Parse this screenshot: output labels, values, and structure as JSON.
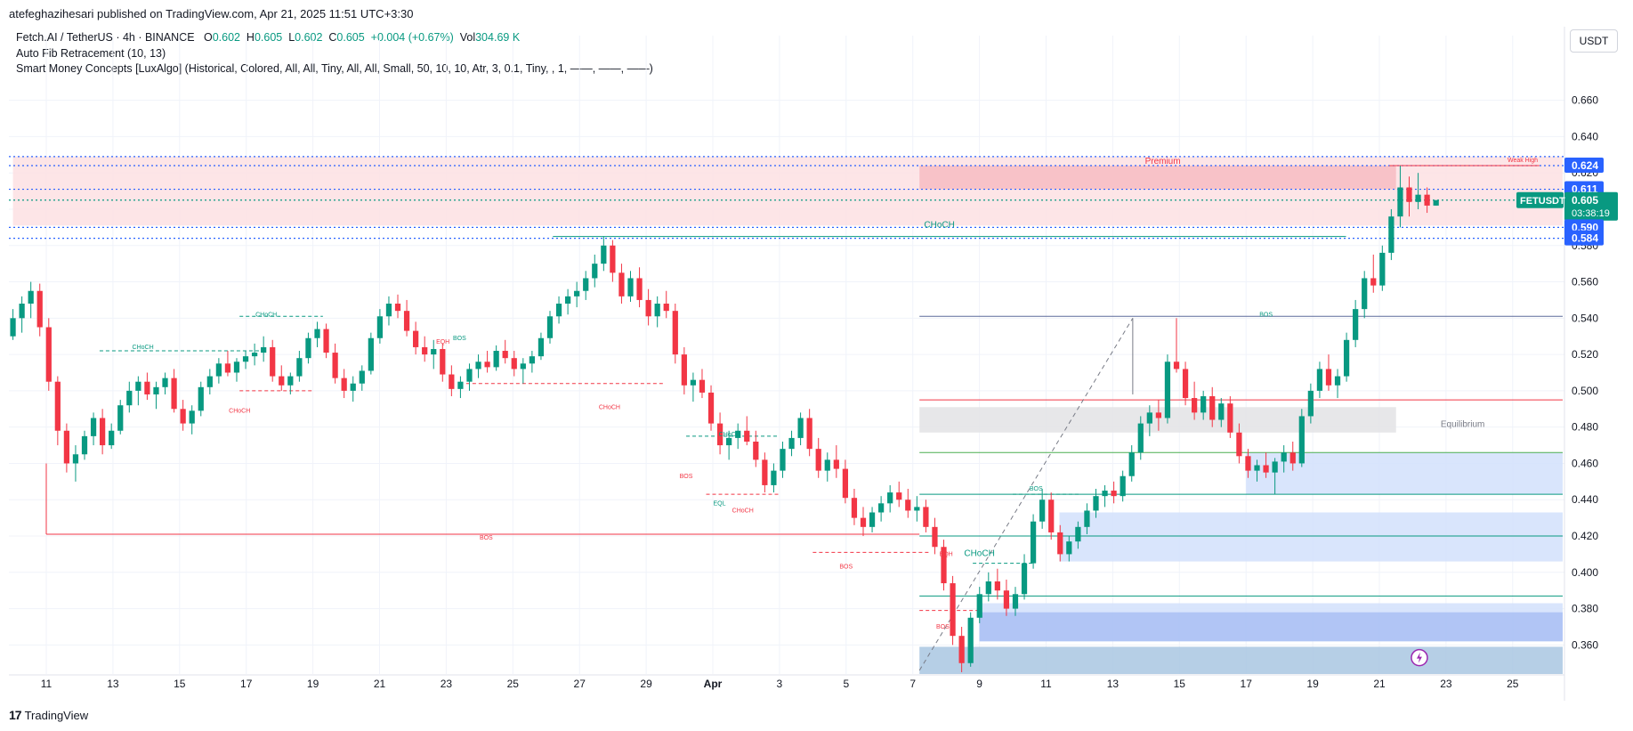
{
  "header": {
    "publisher_line": "atefeghazihesari published on TradingView.com, Apr 21, 2025 11:51 UTC+3:30"
  },
  "legend": {
    "symbol_line": "Fetch.AI / TetherUS · 4h · BINANCE",
    "o_label": "O",
    "o_value": "0.602",
    "h_label": "H",
    "h_value": "0.605",
    "l_label": "L",
    "l_value": "0.602",
    "c_label": "C",
    "c_value": "0.605",
    "change": "+0.004 (+0.67%)",
    "vol_label": "Vol",
    "vol_value": "304.69 K",
    "indicator1": "Auto Fib Retracement (10, 13)",
    "indicator2": "Smart Money Concepts [LuxAlgo] (Historical, Colored, All, All, Tiny, All, All, Small, 50, 10, 10, Atr, 3, 0.1, Tiny, , 1, ——, ——, ——)"
  },
  "currency_button": "USDT",
  "footer": {
    "brand": "TradingView",
    "logo": "17"
  },
  "colors": {
    "up": "#089981",
    "down": "#f23645",
    "blue": "#2962ff",
    "zone_red": "#f7c7cb",
    "zone_blue": "#c5d5f8"
  },
  "chart_data": {
    "type": "candlestick",
    "title": "Fetch.AI / TetherUS · 4h · BINANCE",
    "ylim": [
      0.344,
      0.676
    ],
    "y_ticks": [
      "0.660",
      "0.640",
      "0.620",
      "0.600",
      "0.580",
      "0.560",
      "0.540",
      "0.520",
      "0.500",
      "0.480",
      "0.460",
      "0.440",
      "0.420",
      "0.400",
      "0.380",
      "0.360"
    ],
    "x_range_days": [
      10.0,
      55.0
    ],
    "x_ticks": [
      {
        "day": 11,
        "label": "11"
      },
      {
        "day": 13,
        "label": "13"
      },
      {
        "day": 15,
        "label": "15"
      },
      {
        "day": 17,
        "label": "17"
      },
      {
        "day": 19,
        "label": "19"
      },
      {
        "day": 21,
        "label": "21"
      },
      {
        "day": 23,
        "label": "23"
      },
      {
        "day": 25,
        "label": "25"
      },
      {
        "day": 27,
        "label": "27"
      },
      {
        "day": 29,
        "label": "29"
      },
      {
        "day": 31,
        "label": "Apr"
      },
      {
        "day": 33,
        "label": "3"
      },
      {
        "day": 35,
        "label": "5"
      },
      {
        "day": 37,
        "label": "7"
      },
      {
        "day": 39,
        "label": "9"
      },
      {
        "day": 41,
        "label": "11"
      },
      {
        "day": 43,
        "label": "13"
      },
      {
        "day": 45,
        "label": "15"
      },
      {
        "day": 47,
        "label": "17"
      },
      {
        "day": 49,
        "label": "19"
      },
      {
        "day": 51,
        "label": "21"
      },
      {
        "day": 53,
        "label": "23"
      },
      {
        "day": 55,
        "label": "25"
      }
    ],
    "price_labels": [
      {
        "value": 0.624,
        "text": "0.624",
        "color": "#2962ff"
      },
      {
        "value": 0.611,
        "text": "0.611",
        "color": "#2962ff"
      },
      {
        "value": 0.605,
        "text": "0.605",
        "sub": "03:38:19",
        "color": "#089981",
        "symbol": "FETUSDT"
      },
      {
        "value": 0.59,
        "text": "0.590",
        "color": "#2962ff"
      },
      {
        "value": 0.584,
        "text": "0.584",
        "color": "#2962ff"
      }
    ],
    "fib_lines": [
      0.629,
      0.624,
      0.611,
      0.605,
      0.59,
      0.584
    ],
    "zones": [
      {
        "name": "premium-zone",
        "x0": 10.0,
        "x1": 56.5,
        "y0": 0.591,
        "y1": 0.629,
        "color": "#fde0e3"
      },
      {
        "name": "premium-box",
        "x0": 37.2,
        "x1": 51.5,
        "y0": 0.611,
        "y1": 0.624,
        "color": "#f7bcc2"
      },
      {
        "name": "equilibrium-box",
        "x0": 37.2,
        "x1": 51.5,
        "y0": 0.477,
        "y1": 0.491,
        "color": "#e3e3e5"
      },
      {
        "name": "blue-zone-1",
        "x0": 47.0,
        "x1": 56.5,
        "y0": 0.443,
        "y1": 0.466,
        "color": "#d2e0fb"
      },
      {
        "name": "blue-zone-2",
        "x0": 41.4,
        "x1": 56.5,
        "y0": 0.406,
        "y1": 0.433,
        "color": "#d2e0fb"
      },
      {
        "name": "blue-zone-3",
        "x0": 39.0,
        "x1": 56.5,
        "y0": 0.362,
        "y1": 0.383,
        "color": "#d2e0fb"
      },
      {
        "name": "blue-zone-4",
        "x0": 39.0,
        "x1": 56.5,
        "y0": 0.362,
        "y1": 0.378,
        "color": "#a9c0f3"
      },
      {
        "name": "discount-zone",
        "x0": 37.2,
        "x1": 56.5,
        "y0": 0.344,
        "y1": 0.359,
        "color": "#a9c7e2"
      }
    ],
    "annotations": [
      {
        "text": "Premium",
        "day": 44.5,
        "y": 0.625,
        "color": "#f23645"
      },
      {
        "text": "Weak High",
        "day": 55.3,
        "y": 0.626,
        "color": "#f23645"
      },
      {
        "text": "CHoCH",
        "day": 37.8,
        "y": 0.59,
        "color": "#089981"
      },
      {
        "text": "BOS",
        "day": 47.6,
        "y": 0.541,
        "color": "#089981"
      },
      {
        "text": "Equilibrium",
        "day": 53.5,
        "y": 0.48,
        "color": "#787b86"
      },
      {
        "text": "BOS",
        "day": 24.2,
        "y": 0.418,
        "color": "#f23645"
      },
      {
        "text": "CHoCH",
        "day": 13.9,
        "y": 0.523,
        "color": "#089981"
      },
      {
        "text": "CHoCH",
        "day": 17.6,
        "y": 0.541,
        "color": "#089981"
      },
      {
        "text": "CHoCH",
        "day": 16.8,
        "y": 0.488,
        "color": "#f23645"
      },
      {
        "text": "EQH",
        "day": 22.9,
        "y": 0.526,
        "color": "#f23645"
      },
      {
        "text": "BOS",
        "day": 23.4,
        "y": 0.528,
        "color": "#089981"
      },
      {
        "text": "CHoCH",
        "day": 27.9,
        "y": 0.49,
        "color": "#f23645"
      },
      {
        "text": "CHoCH",
        "day": 31.5,
        "y": 0.475,
        "color": "#089981"
      },
      {
        "text": "BOS",
        "day": 30.2,
        "y": 0.452,
        "color": "#f23645"
      },
      {
        "text": "EQL",
        "day": 31.2,
        "y": 0.437,
        "color": "#089981"
      },
      {
        "text": "CHoCH",
        "day": 31.9,
        "y": 0.433,
        "color": "#f23645"
      },
      {
        "text": "BOS",
        "day": 35.0,
        "y": 0.402,
        "color": "#f23645"
      },
      {
        "text": "EQH",
        "day": 38.0,
        "y": 0.409,
        "color": "#f23645"
      },
      {
        "text": "CHoCH",
        "day": 39.0,
        "y": 0.409,
        "color": "#089981"
      },
      {
        "text": "BOS",
        "day": 40.7,
        "y": 0.445,
        "color": "#089981"
      },
      {
        "text": "BOS",
        "day": 37.9,
        "y": 0.369,
        "color": "#f23645"
      }
    ],
    "candles": [
      [
        0.53,
        0.545,
        0.528,
        0.54
      ],
      [
        0.54,
        0.552,
        0.532,
        0.548
      ],
      [
        0.548,
        0.56,
        0.54,
        0.555
      ],
      [
        0.555,
        0.559,
        0.53,
        0.535
      ],
      [
        0.535,
        0.54,
        0.5,
        0.505
      ],
      [
        0.505,
        0.508,
        0.47,
        0.478
      ],
      [
        0.478,
        0.482,
        0.455,
        0.46
      ],
      [
        0.46,
        0.47,
        0.45,
        0.465
      ],
      [
        0.465,
        0.478,
        0.462,
        0.475
      ],
      [
        0.475,
        0.488,
        0.47,
        0.485
      ],
      [
        0.485,
        0.49,
        0.465,
        0.47
      ],
      [
        0.47,
        0.482,
        0.468,
        0.478
      ],
      [
        0.478,
        0.495,
        0.476,
        0.492
      ],
      [
        0.492,
        0.505,
        0.488,
        0.5
      ],
      [
        0.5,
        0.508,
        0.492,
        0.505
      ],
      [
        0.505,
        0.51,
        0.495,
        0.498
      ],
      [
        0.498,
        0.505,
        0.49,
        0.502
      ],
      [
        0.502,
        0.51,
        0.498,
        0.507
      ],
      [
        0.507,
        0.512,
        0.488,
        0.49
      ],
      [
        0.49,
        0.495,
        0.478,
        0.482
      ],
      [
        0.482,
        0.492,
        0.476,
        0.489
      ],
      [
        0.489,
        0.505,
        0.486,
        0.502
      ],
      [
        0.502,
        0.512,
        0.498,
        0.508
      ],
      [
        0.508,
        0.518,
        0.504,
        0.515
      ],
      [
        0.515,
        0.522,
        0.508,
        0.51
      ],
      [
        0.51,
        0.518,
        0.505,
        0.516
      ],
      [
        0.516,
        0.522,
        0.512,
        0.519
      ],
      [
        0.519,
        0.526,
        0.514,
        0.521
      ],
      [
        0.521,
        0.53,
        0.516,
        0.524
      ],
      [
        0.524,
        0.528,
        0.505,
        0.508
      ],
      [
        0.508,
        0.514,
        0.5,
        0.503
      ],
      [
        0.503,
        0.51,
        0.498,
        0.508
      ],
      [
        0.508,
        0.522,
        0.505,
        0.518
      ],
      [
        0.518,
        0.532,
        0.515,
        0.529
      ],
      [
        0.529,
        0.538,
        0.524,
        0.534
      ],
      [
        0.534,
        0.537,
        0.518,
        0.521
      ],
      [
        0.521,
        0.526,
        0.504,
        0.507
      ],
      [
        0.507,
        0.512,
        0.496,
        0.5
      ],
      [
        0.5,
        0.508,
        0.494,
        0.504
      ],
      [
        0.504,
        0.514,
        0.5,
        0.511
      ],
      [
        0.511,
        0.532,
        0.509,
        0.529
      ],
      [
        0.529,
        0.545,
        0.526,
        0.541
      ],
      [
        0.541,
        0.552,
        0.536,
        0.548
      ],
      [
        0.548,
        0.553,
        0.54,
        0.544
      ],
      [
        0.544,
        0.55,
        0.53,
        0.533
      ],
      [
        0.533,
        0.538,
        0.52,
        0.524
      ],
      [
        0.524,
        0.53,
        0.516,
        0.52
      ],
      [
        0.52,
        0.528,
        0.512,
        0.523
      ],
      [
        0.523,
        0.526,
        0.505,
        0.509
      ],
      [
        0.509,
        0.514,
        0.497,
        0.501
      ],
      [
        0.501,
        0.508,
        0.496,
        0.505
      ],
      [
        0.505,
        0.515,
        0.5,
        0.512
      ],
      [
        0.512,
        0.52,
        0.507,
        0.516
      ],
      [
        0.516,
        0.522,
        0.51,
        0.513
      ],
      [
        0.513,
        0.525,
        0.511,
        0.522
      ],
      [
        0.522,
        0.528,
        0.515,
        0.518
      ],
      [
        0.518,
        0.522,
        0.508,
        0.512
      ],
      [
        0.512,
        0.518,
        0.504,
        0.515
      ],
      [
        0.515,
        0.522,
        0.51,
        0.519
      ],
      [
        0.519,
        0.532,
        0.517,
        0.529
      ],
      [
        0.529,
        0.544,
        0.526,
        0.541
      ],
      [
        0.541,
        0.552,
        0.537,
        0.548
      ],
      [
        0.548,
        0.556,
        0.542,
        0.552
      ],
      [
        0.552,
        0.56,
        0.546,
        0.555
      ],
      [
        0.555,
        0.566,
        0.55,
        0.562
      ],
      [
        0.562,
        0.575,
        0.557,
        0.57
      ],
      [
        0.57,
        0.585,
        0.566,
        0.58
      ],
      [
        0.58,
        0.583,
        0.56,
        0.565
      ],
      [
        0.565,
        0.57,
        0.548,
        0.552
      ],
      [
        0.552,
        0.566,
        0.549,
        0.562
      ],
      [
        0.562,
        0.568,
        0.546,
        0.55
      ],
      [
        0.55,
        0.556,
        0.536,
        0.541
      ],
      [
        0.541,
        0.552,
        0.535,
        0.548
      ],
      [
        0.548,
        0.555,
        0.54,
        0.544
      ],
      [
        0.544,
        0.548,
        0.515,
        0.52
      ],
      [
        0.52,
        0.524,
        0.498,
        0.503
      ],
      [
        0.503,
        0.51,
        0.494,
        0.506
      ],
      [
        0.506,
        0.512,
        0.496,
        0.499
      ],
      [
        0.499,
        0.503,
        0.478,
        0.482
      ],
      [
        0.482,
        0.488,
        0.465,
        0.47
      ],
      [
        0.47,
        0.478,
        0.462,
        0.474
      ],
      [
        0.474,
        0.482,
        0.468,
        0.478
      ],
      [
        0.478,
        0.486,
        0.47,
        0.472
      ],
      [
        0.472,
        0.478,
        0.458,
        0.462
      ],
      [
        0.462,
        0.466,
        0.444,
        0.448
      ],
      [
        0.448,
        0.46,
        0.444,
        0.456
      ],
      [
        0.456,
        0.472,
        0.452,
        0.468
      ],
      [
        0.468,
        0.478,
        0.464,
        0.474
      ],
      [
        0.474,
        0.488,
        0.47,
        0.485
      ],
      [
        0.485,
        0.49,
        0.464,
        0.468
      ],
      [
        0.468,
        0.474,
        0.452,
        0.456
      ],
      [
        0.456,
        0.466,
        0.45,
        0.462
      ],
      [
        0.462,
        0.47,
        0.452,
        0.457
      ],
      [
        0.457,
        0.462,
        0.438,
        0.441
      ],
      [
        0.441,
        0.446,
        0.426,
        0.43
      ],
      [
        0.43,
        0.436,
        0.42,
        0.425
      ],
      [
        0.425,
        0.436,
        0.422,
        0.433
      ],
      [
        0.433,
        0.442,
        0.428,
        0.438
      ],
      [
        0.438,
        0.448,
        0.433,
        0.444
      ],
      [
        0.444,
        0.45,
        0.436,
        0.44
      ],
      [
        0.44,
        0.446,
        0.43,
        0.434
      ],
      [
        0.434,
        0.442,
        0.428,
        0.436
      ],
      [
        0.436,
        0.44,
        0.422,
        0.425
      ],
      [
        0.425,
        0.43,
        0.41,
        0.414
      ],
      [
        0.414,
        0.418,
        0.39,
        0.394
      ],
      [
        0.394,
        0.398,
        0.36,
        0.365
      ],
      [
        0.365,
        0.37,
        0.345,
        0.35
      ],
      [
        0.35,
        0.378,
        0.348,
        0.375
      ],
      [
        0.375,
        0.392,
        0.372,
        0.388
      ],
      [
        0.388,
        0.4,
        0.384,
        0.395
      ],
      [
        0.395,
        0.402,
        0.385,
        0.39
      ],
      [
        0.39,
        0.396,
        0.376,
        0.38
      ],
      [
        0.38,
        0.392,
        0.376,
        0.388
      ],
      [
        0.388,
        0.41,
        0.385,
        0.405
      ],
      [
        0.405,
        0.432,
        0.402,
        0.428
      ],
      [
        0.428,
        0.446,
        0.424,
        0.44
      ],
      [
        0.44,
        0.444,
        0.418,
        0.422
      ],
      [
        0.422,
        0.426,
        0.406,
        0.41
      ],
      [
        0.41,
        0.42,
        0.406,
        0.417
      ],
      [
        0.417,
        0.428,
        0.413,
        0.425
      ],
      [
        0.425,
        0.438,
        0.421,
        0.434
      ],
      [
        0.434,
        0.446,
        0.43,
        0.442
      ],
      [
        0.442,
        0.448,
        0.436,
        0.445
      ],
      [
        0.445,
        0.45,
        0.438,
        0.442
      ],
      [
        0.442,
        0.456,
        0.439,
        0.453
      ],
      [
        0.453,
        0.47,
        0.45,
        0.466
      ],
      [
        0.466,
        0.486,
        0.462,
        0.482
      ],
      [
        0.482,
        0.492,
        0.475,
        0.488
      ],
      [
        0.488,
        0.495,
        0.478,
        0.485
      ],
      [
        0.485,
        0.52,
        0.482,
        0.516
      ],
      [
        0.516,
        0.54,
        0.51,
        0.512
      ],
      [
        0.512,
        0.516,
        0.492,
        0.496
      ],
      [
        0.496,
        0.505,
        0.484,
        0.488
      ],
      [
        0.488,
        0.5,
        0.484,
        0.497
      ],
      [
        0.497,
        0.502,
        0.48,
        0.484
      ],
      [
        0.484,
        0.496,
        0.48,
        0.493
      ],
      [
        0.493,
        0.497,
        0.474,
        0.477
      ],
      [
        0.477,
        0.482,
        0.46,
        0.464
      ],
      [
        0.464,
        0.468,
        0.452,
        0.456
      ],
      [
        0.456,
        0.462,
        0.45,
        0.459
      ],
      [
        0.459,
        0.466,
        0.452,
        0.455
      ],
      [
        0.455,
        0.463,
        0.443,
        0.461
      ],
      [
        0.461,
        0.47,
        0.455,
        0.466
      ],
      [
        0.466,
        0.472,
        0.456,
        0.46
      ],
      [
        0.46,
        0.49,
        0.458,
        0.486
      ],
      [
        0.486,
        0.504,
        0.482,
        0.5
      ],
      [
        0.5,
        0.516,
        0.496,
        0.512
      ],
      [
        0.512,
        0.52,
        0.5,
        0.503
      ],
      [
        0.503,
        0.512,
        0.496,
        0.508
      ],
      [
        0.508,
        0.532,
        0.505,
        0.528
      ],
      [
        0.528,
        0.55,
        0.524,
        0.545
      ],
      [
        0.545,
        0.566,
        0.54,
        0.562
      ],
      [
        0.562,
        0.575,
        0.554,
        0.558
      ],
      [
        0.558,
        0.58,
        0.555,
        0.576
      ],
      [
        0.576,
        0.6,
        0.572,
        0.596
      ],
      [
        0.596,
        0.624,
        0.59,
        0.612
      ],
      [
        0.612,
        0.618,
        0.596,
        0.604
      ],
      [
        0.604,
        0.62,
        0.6,
        0.608
      ],
      [
        0.608,
        0.612,
        0.598,
        0.602
      ],
      [
        0.602,
        0.605,
        0.602,
        0.605
      ]
    ]
  }
}
